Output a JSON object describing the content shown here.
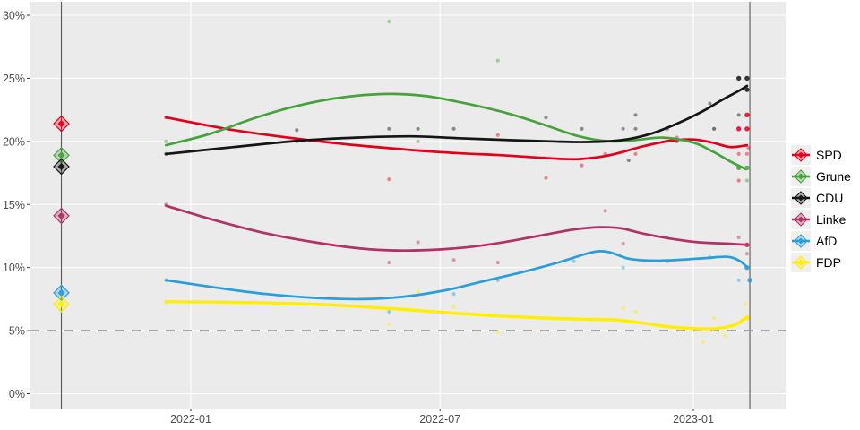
{
  "chart_data": {
    "type": "line",
    "title": "",
    "xlabel": "",
    "ylabel": "",
    "panel_bg": "#ebebeb",
    "grid_color": "#ffffff",
    "axis_text_color": "#4d4d4d",
    "legend_position": "right",
    "y_tick_labels": [
      "30%",
      "25%",
      "20%",
      "15%",
      "10%",
      "5%",
      "0%"
    ],
    "y_tick_values": [
      30,
      25,
      20,
      15,
      10,
      5,
      0
    ],
    "ylim": [
      -1.2,
      31
    ],
    "x_tick_labels": [
      "2022-01",
      "2022-07",
      "2023-01"
    ],
    "x_tick_dates": [
      "2022-01-01",
      "2022-07-01",
      "2023-01-01"
    ],
    "x_range_dates": [
      "2021-09-06",
      "2023-03-07"
    ],
    "threshold_line": {
      "value": 5,
      "style": "dashed",
      "color": "#909090"
    },
    "event_vlines": [
      {
        "date": "2021-09-29",
        "color": "#595959"
      },
      {
        "date": "2023-02-11",
        "color": "#595959"
      }
    ],
    "series": [
      {
        "name": "SPD",
        "color": "#e3001b",
        "result_2021": 21.4,
        "trend": [
          [
            "2021-12-14",
            21.9
          ],
          [
            "2022-02-01",
            20.9
          ],
          [
            "2022-03-20",
            20.2
          ],
          [
            "2022-05-01",
            19.7
          ],
          [
            "2022-07-01",
            19.15
          ],
          [
            "2022-08-15",
            18.9
          ],
          [
            "2022-09-20",
            18.65
          ],
          [
            "2022-10-10",
            18.6
          ],
          [
            "2022-11-01",
            18.9
          ],
          [
            "2022-11-25",
            19.6
          ],
          [
            "2022-12-15",
            20.05
          ],
          [
            "2023-01-01",
            20.15
          ],
          [
            "2023-01-15",
            19.9
          ],
          [
            "2023-01-28",
            19.55
          ],
          [
            "2023-02-09",
            19.7
          ]
        ],
        "polls": [
          [
            "2021-12-14",
            21.9
          ],
          [
            "2022-05-25",
            17.0
          ],
          [
            "2022-08-12",
            20.5
          ],
          [
            "2022-09-16",
            17.1
          ],
          [
            "2022-10-12",
            18.1
          ],
          [
            "2022-10-29",
            19.0
          ],
          [
            "2022-11-20",
            19.0
          ],
          [
            "2022-12-20",
            20.3
          ],
          [
            "2023-02-03",
            21.0,
            1
          ],
          [
            "2023-02-09",
            21.0,
            1
          ],
          [
            "2023-02-09",
            22.1,
            1
          ],
          [
            "2023-02-10",
            19.5
          ],
          [
            "2023-02-03",
            19.0
          ],
          [
            "2023-02-09",
            19.0
          ],
          [
            "2023-02-03",
            16.9
          ]
        ]
      },
      {
        "name": "Grune",
        "color": "#47a23e",
        "result_2021": 18.9,
        "trend": [
          [
            "2021-12-14",
            19.7
          ],
          [
            "2022-01-15",
            20.6
          ],
          [
            "2022-02-15",
            21.8
          ],
          [
            "2022-03-15",
            22.7
          ],
          [
            "2022-04-15",
            23.4
          ],
          [
            "2022-05-20",
            23.75
          ],
          [
            "2022-06-20",
            23.6
          ],
          [
            "2022-07-20",
            23.0
          ],
          [
            "2022-08-20",
            22.2
          ],
          [
            "2022-09-15",
            21.3
          ],
          [
            "2022-10-10",
            20.4
          ],
          [
            "2022-11-01",
            20.0
          ],
          [
            "2022-11-20",
            20.1
          ],
          [
            "2022-12-10",
            20.3
          ],
          [
            "2023-01-01",
            19.9
          ],
          [
            "2023-01-15",
            19.2
          ],
          [
            "2023-01-28",
            18.4
          ],
          [
            "2023-02-08",
            17.8
          ]
        ],
        "polls": [
          [
            "2021-12-14",
            20.0
          ],
          [
            "2022-05-25",
            29.5
          ],
          [
            "2022-06-15",
            20.0
          ],
          [
            "2022-08-12",
            26.4
          ],
          [
            "2023-01-16",
            21.0
          ],
          [
            "2023-02-03",
            17.9,
            1
          ],
          [
            "2023-02-09",
            17.9,
            1
          ],
          [
            "2023-02-09",
            16.9
          ]
        ]
      },
      {
        "name": "CDU",
        "color": "#151515",
        "result_2021": 18.0,
        "trend": [
          [
            "2021-12-14",
            19.0
          ],
          [
            "2022-02-01",
            19.55
          ],
          [
            "2022-03-20",
            20.05
          ],
          [
            "2022-05-01",
            20.3
          ],
          [
            "2022-06-10",
            20.4
          ],
          [
            "2022-07-15",
            20.25
          ],
          [
            "2022-08-20",
            20.1
          ],
          [
            "2022-09-20",
            20.0
          ],
          [
            "2022-10-15",
            19.95
          ],
          [
            "2022-11-10",
            20.1
          ],
          [
            "2022-12-01",
            20.6
          ],
          [
            "2022-12-20",
            21.4
          ],
          [
            "2023-01-08",
            22.4
          ],
          [
            "2023-01-22",
            23.3
          ],
          [
            "2023-02-03",
            24.0
          ],
          [
            "2023-02-09",
            24.4
          ]
        ],
        "polls": [
          [
            "2021-12-14",
            19.0
          ],
          [
            "2022-03-19",
            20.0
          ],
          [
            "2022-03-19",
            20.9
          ],
          [
            "2022-05-25",
            21.0
          ],
          [
            "2022-06-15",
            21.0
          ],
          [
            "2022-07-11",
            21.0
          ],
          [
            "2022-09-16",
            21.9
          ],
          [
            "2022-10-12",
            21.0
          ],
          [
            "2022-11-11",
            21.0
          ],
          [
            "2022-11-20",
            22.1
          ],
          [
            "2022-11-20",
            21.0
          ],
          [
            "2022-11-15",
            18.5
          ],
          [
            "2022-12-13",
            21.0
          ],
          [
            "2022-12-20",
            20.0
          ],
          [
            "2023-01-13",
            23.0
          ],
          [
            "2023-01-16",
            21.0
          ],
          [
            "2023-02-03",
            25.0,
            1
          ],
          [
            "2023-02-09",
            25.0,
            1
          ],
          [
            "2023-02-09",
            24.1,
            1
          ],
          [
            "2023-02-03",
            22.1
          ]
        ]
      },
      {
        "name": "Linke",
        "color": "#b03366",
        "result_2021": 14.1,
        "trend": [
          [
            "2021-12-14",
            14.9
          ],
          [
            "2022-01-20",
            13.7
          ],
          [
            "2022-02-25",
            12.7
          ],
          [
            "2022-04-01",
            12.0
          ],
          [
            "2022-05-05",
            11.5
          ],
          [
            "2022-06-05",
            11.35
          ],
          [
            "2022-07-10",
            11.5
          ],
          [
            "2022-08-10",
            11.9
          ],
          [
            "2022-09-10",
            12.5
          ],
          [
            "2022-10-05",
            13.0
          ],
          [
            "2022-10-25",
            13.2
          ],
          [
            "2022-11-10",
            13.1
          ],
          [
            "2022-11-25",
            12.7
          ],
          [
            "2022-12-15",
            12.3
          ],
          [
            "2023-01-05",
            12.0
          ],
          [
            "2023-01-25",
            11.9
          ],
          [
            "2023-02-09",
            11.8
          ]
        ],
        "polls": [
          [
            "2021-12-14",
            15.0
          ],
          [
            "2022-05-25",
            10.4
          ],
          [
            "2022-06-15",
            12.0
          ],
          [
            "2022-07-11",
            10.6
          ],
          [
            "2022-08-12",
            10.4
          ],
          [
            "2022-10-29",
            14.5
          ],
          [
            "2022-11-11",
            11.9
          ],
          [
            "2022-12-13",
            12.4
          ],
          [
            "2023-02-03",
            12.4
          ],
          [
            "2023-02-09",
            11.8,
            1
          ],
          [
            "2023-02-09",
            11.1
          ]
        ]
      },
      {
        "name": "AfD",
        "color": "#2b9dd9",
        "result_2021": 8.0,
        "trend": [
          [
            "2021-12-14",
            9.0
          ],
          [
            "2022-01-20",
            8.4
          ],
          [
            "2022-02-25",
            7.9
          ],
          [
            "2022-04-01",
            7.6
          ],
          [
            "2022-05-05",
            7.5
          ],
          [
            "2022-06-05",
            7.7
          ],
          [
            "2022-07-05",
            8.2
          ],
          [
            "2022-08-01",
            8.9
          ],
          [
            "2022-09-01",
            9.7
          ],
          [
            "2022-09-25",
            10.4
          ],
          [
            "2022-10-25",
            11.3
          ],
          [
            "2022-11-15",
            10.7
          ],
          [
            "2022-12-01",
            10.55
          ],
          [
            "2022-12-20",
            10.6
          ],
          [
            "2023-01-10",
            10.75
          ],
          [
            "2023-01-26",
            10.85
          ],
          [
            "2023-02-04",
            10.5
          ],
          [
            "2023-02-09",
            10.0
          ]
        ],
        "polls": [
          [
            "2021-12-14",
            9.0
          ],
          [
            "2022-05-25",
            6.5
          ],
          [
            "2022-07-11",
            7.9
          ],
          [
            "2022-08-12",
            9.0
          ],
          [
            "2022-10-06",
            10.5
          ],
          [
            "2022-11-11",
            10.0
          ],
          [
            "2022-12-13",
            10.5
          ],
          [
            "2023-01-13",
            10.8
          ],
          [
            "2023-02-03",
            9.0
          ],
          [
            "2023-02-09",
            10.0,
            1
          ],
          [
            "2023-02-11",
            9.0,
            1
          ]
        ]
      },
      {
        "name": "FDP",
        "color": "#ffee00",
        "result_2021": 7.1,
        "trend": [
          [
            "2021-12-14",
            7.3
          ],
          [
            "2022-02-01",
            7.25
          ],
          [
            "2022-03-15",
            7.15
          ],
          [
            "2022-04-20",
            7.0
          ],
          [
            "2022-06-01",
            6.7
          ],
          [
            "2022-07-10",
            6.4
          ],
          [
            "2022-08-15",
            6.15
          ],
          [
            "2022-09-15",
            6.0
          ],
          [
            "2022-10-15",
            5.9
          ],
          [
            "2022-11-05",
            5.85
          ],
          [
            "2022-11-25",
            5.6
          ],
          [
            "2022-12-15",
            5.3
          ],
          [
            "2023-01-05",
            5.15
          ],
          [
            "2023-01-20",
            5.2
          ],
          [
            "2023-02-01",
            5.5
          ],
          [
            "2023-02-09",
            6.1
          ]
        ],
        "polls": [
          [
            "2021-12-14",
            7.2
          ],
          [
            "2022-05-25",
            5.5
          ],
          [
            "2022-06-15",
            8.1
          ],
          [
            "2022-07-11",
            6.9
          ],
          [
            "2022-08-12",
            4.9
          ],
          [
            "2022-11-11",
            6.8
          ],
          [
            "2022-11-20",
            6.5
          ],
          [
            "2023-01-08",
            4.1
          ],
          [
            "2023-01-16",
            6.0
          ],
          [
            "2023-01-24",
            4.6
          ],
          [
            "2023-02-08",
            7.1
          ],
          [
            "2023-02-09",
            6.0,
            1
          ]
        ]
      }
    ]
  }
}
